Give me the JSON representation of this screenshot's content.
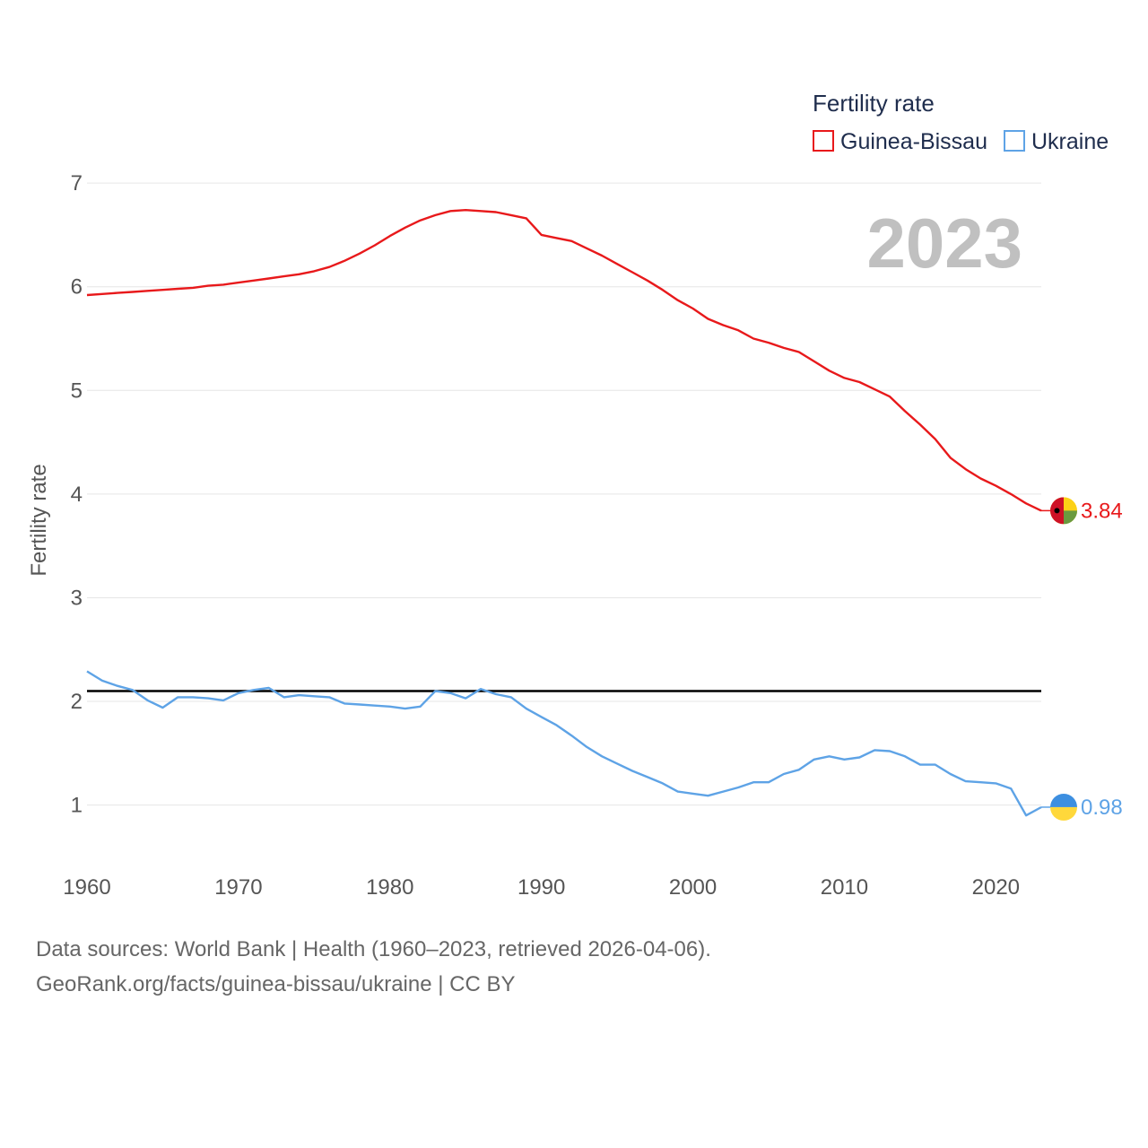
{
  "chart_data": {
    "type": "line",
    "ylabel": "Fertility rate",
    "xlabel": "",
    "legend_title": "Fertility rate",
    "legend_position": "top-right",
    "year_label": "2023",
    "xlim": [
      1960,
      2023
    ],
    "ylim": [
      0.4,
      7.2
    ],
    "x_ticks": [
      1960,
      1970,
      1980,
      1990,
      2000,
      2010,
      2020
    ],
    "y_ticks": [
      1,
      2,
      3,
      4,
      5,
      6,
      7
    ],
    "reference_line": 2.1,
    "x": [
      1960,
      1961,
      1962,
      1963,
      1964,
      1965,
      1966,
      1967,
      1968,
      1969,
      1970,
      1971,
      1972,
      1973,
      1974,
      1975,
      1976,
      1977,
      1978,
      1979,
      1980,
      1981,
      1982,
      1983,
      1984,
      1985,
      1986,
      1987,
      1988,
      1989,
      1990,
      1991,
      1992,
      1993,
      1994,
      1995,
      1996,
      1997,
      1998,
      1999,
      2000,
      2001,
      2002,
      2003,
      2004,
      2005,
      2006,
      2007,
      2008,
      2009,
      2010,
      2011,
      2012,
      2013,
      2014,
      2015,
      2016,
      2017,
      2018,
      2019,
      2020,
      2021,
      2022,
      2023
    ],
    "series": [
      {
        "name": "Guinea-Bissau",
        "color": "#e8191b",
        "end_label": "3.84",
        "flag": "guinea-bissau-flag",
        "values": [
          5.92,
          5.93,
          5.94,
          5.95,
          5.96,
          5.97,
          5.98,
          5.99,
          6.01,
          6.02,
          6.04,
          6.06,
          6.08,
          6.1,
          6.12,
          6.15,
          6.19,
          6.25,
          6.32,
          6.4,
          6.49,
          6.57,
          6.64,
          6.69,
          6.73,
          6.74,
          6.73,
          6.72,
          6.69,
          6.66,
          6.5,
          6.47,
          6.44,
          6.37,
          6.3,
          6.22,
          6.14,
          6.06,
          5.97,
          5.87,
          5.79,
          5.69,
          5.63,
          5.58,
          5.5,
          5.46,
          5.41,
          5.37,
          5.28,
          5.19,
          5.12,
          5.08,
          5.01,
          4.94,
          4.8,
          4.67,
          4.53,
          4.35,
          4.24,
          4.15,
          4.08,
          4.0,
          3.91,
          3.84
        ]
      },
      {
        "name": "Ukraine",
        "color": "#5ea3e6",
        "end_label": "0.98",
        "flag": "ukraine-flag",
        "values": [
          2.29,
          2.2,
          2.15,
          2.11,
          2.01,
          1.94,
          2.04,
          2.04,
          2.03,
          2.01,
          2.08,
          2.11,
          2.13,
          2.04,
          2.06,
          2.05,
          2.04,
          1.98,
          1.97,
          1.96,
          1.95,
          1.93,
          1.95,
          2.1,
          2.08,
          2.03,
          2.12,
          2.07,
          2.04,
          1.93,
          1.85,
          1.77,
          1.67,
          1.56,
          1.47,
          1.4,
          1.33,
          1.27,
          1.21,
          1.13,
          1.11,
          1.09,
          1.13,
          1.17,
          1.22,
          1.22,
          1.3,
          1.34,
          1.44,
          1.47,
          1.44,
          1.46,
          1.53,
          1.52,
          1.47,
          1.39,
          1.39,
          1.3,
          1.23,
          1.22,
          1.21,
          1.16,
          0.9,
          0.98
        ]
      }
    ]
  },
  "footer": {
    "line1": "Data sources: World Bank | Health (1960–2023, retrieved 2026-04-06).",
    "line2": "GeoRank.org/facts/guinea-bissau/ukraine | CC BY"
  }
}
